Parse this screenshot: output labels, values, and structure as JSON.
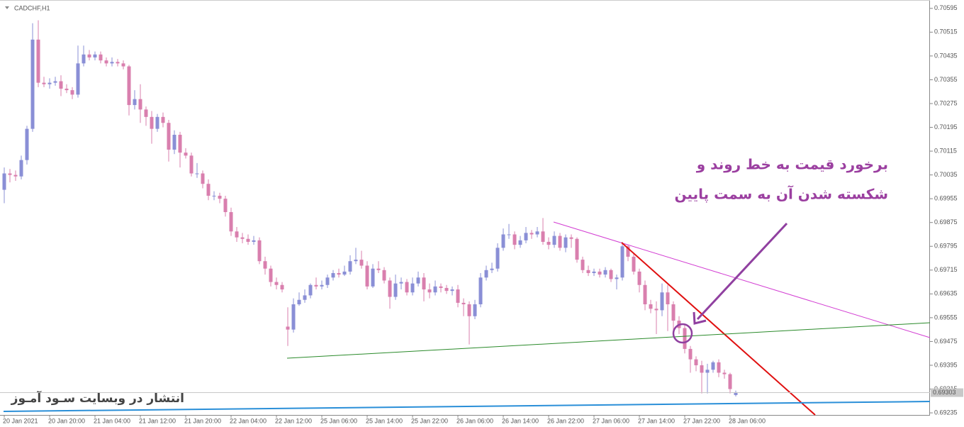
{
  "chart_data": {
    "type": "candlestick",
    "title": "CADCHF,H1",
    "categories": [
      "20 Jan 2021",
      null,
      null,
      null,
      null,
      null,
      null,
      null,
      "20 Jan 20:00",
      null,
      null,
      null,
      null,
      null,
      null,
      null,
      "21 Jan 04:00",
      null,
      null,
      null,
      null,
      null,
      null,
      null,
      "21 Jan 12:00",
      null,
      null,
      null,
      null,
      null,
      null,
      null,
      "21 Jan 20:00",
      null,
      null,
      null,
      null,
      null,
      null,
      null,
      "22 Jan 04:00",
      null,
      null,
      null,
      null,
      null,
      null,
      null,
      "22 Jan 12:00",
      null,
      null,
      null,
      null,
      null,
      null,
      null,
      "25 Jan 06:00",
      null,
      null,
      null,
      null,
      null,
      null,
      null,
      "25 Jan 14:00",
      null,
      null,
      null,
      null,
      null,
      null,
      null,
      "25 Jan 22:00",
      null,
      null,
      null,
      null,
      null,
      null,
      null,
      "26 Jan 06:00",
      null,
      null,
      null,
      null,
      null,
      null,
      null,
      "26 Jan 14:00",
      null,
      null,
      null,
      null,
      null,
      null,
      null,
      "26 Jan 22:00",
      null,
      null,
      null,
      null,
      null,
      null,
      null,
      "27 Jan 06:00",
      null,
      null,
      null,
      null,
      null,
      null,
      null,
      "27 Jan 14:00",
      null,
      null,
      null,
      null,
      null,
      null,
      null,
      "27 Jan 22:00",
      null,
      null,
      null,
      null,
      null,
      null,
      null,
      "28 Jan 06:00",
      null
    ],
    "open": [
      0.69985,
      0.7004,
      0.70035,
      0.7003,
      0.70085,
      0.7019,
      0.7049,
      0.70345,
      0.7034,
      0.70345,
      0.7035,
      0.70325,
      0.7032,
      0.70305,
      0.7041,
      0.7044,
      0.7043,
      0.7044,
      0.7042,
      0.7041,
      0.70415,
      0.7041,
      0.704,
      0.7027,
      0.7029,
      0.70255,
      0.7023,
      0.7019,
      0.7023,
      0.7021,
      0.7012,
      0.7017,
      0.7011,
      0.701,
      0.7004,
      0.7004,
      0.70005,
      0.69965,
      0.69965,
      0.69955,
      0.6991,
      0.69845,
      0.69825,
      0.6982,
      0.6981,
      0.69815,
      0.69745,
      0.6972,
      0.69675,
      0.69665,
      0.69525,
      0.69515,
      0.696,
      0.69615,
      0.6963,
      0.69665,
      0.6966,
      0.69665,
      0.6969,
      0.69705,
      0.697,
      0.6971,
      0.69745,
      0.6975,
      0.6973,
      0.6966,
      0.6972,
      0.69715,
      0.6968,
      0.69625,
      0.6967,
      0.69675,
      0.6964,
      0.6967,
      0.6969,
      0.6965,
      0.6964,
      0.6966,
      0.69655,
      0.69645,
      0.6965,
      0.69605,
      0.696,
      0.6956,
      0.696,
      0.6969,
      0.69715,
      0.6972,
      0.6979,
      0.69835,
      0.69835,
      0.698,
      0.69815,
      0.6984,
      0.69835,
      0.69845,
      0.6981,
      0.698,
      0.6983,
      0.6979,
      0.69825,
      0.6982,
      0.6975,
      0.69715,
      0.69705,
      0.6971,
      0.697,
      0.69715,
      0.69685,
      0.6969,
      0.69795,
      0.6976,
      0.6971,
      0.69665,
      0.696,
      0.69585,
      0.6958,
      0.6964,
      0.696,
      0.69545,
      0.6952,
      0.6945,
      0.69415,
      0.69395,
      0.6937,
      0.6938,
      0.69405,
      0.6937,
      0.69365,
      0.69295
    ],
    "high": [
      0.7006,
      0.70055,
      0.7005,
      0.701,
      0.702,
      0.70545,
      0.70555,
      0.70365,
      0.7036,
      0.70365,
      0.7037,
      0.7034,
      0.7033,
      0.7047,
      0.7047,
      0.70455,
      0.7045,
      0.7045,
      0.7043,
      0.7043,
      0.70425,
      0.7042,
      0.70405,
      0.7032,
      0.7034,
      0.70265,
      0.7025,
      0.7024,
      0.70245,
      0.7022,
      0.70185,
      0.7018,
      0.70125,
      0.7011,
      0.70075,
      0.7005,
      0.7002,
      0.6998,
      0.69975,
      0.69965,
      0.69925,
      0.6986,
      0.6984,
      0.69835,
      0.6983,
      0.69825,
      0.6976,
      0.6973,
      0.6969,
      0.69675,
      0.6959,
      0.6962,
      0.6964,
      0.6965,
      0.6967,
      0.6969,
      0.6968,
      0.697,
      0.69715,
      0.6972,
      0.6973,
      0.69765,
      0.6979,
      0.6978,
      0.69745,
      0.69735,
      0.69745,
      0.69725,
      0.6969,
      0.697,
      0.6969,
      0.69685,
      0.6969,
      0.6971,
      0.69705,
      0.6967,
      0.6968,
      0.6967,
      0.69665,
      0.6966,
      0.69665,
      0.6962,
      0.6961,
      0.69615,
      0.69705,
      0.6973,
      0.6974,
      0.69805,
      0.69855,
      0.6987,
      0.69845,
      0.6983,
      0.6986,
      0.6985,
      0.6986,
      0.6989,
      0.69825,
      0.69845,
      0.6984,
      0.69835,
      0.69835,
      0.69825,
      0.6976,
      0.6973,
      0.6972,
      0.6972,
      0.69725,
      0.6972,
      0.697,
      0.6981,
      0.698,
      0.6977,
      0.6972,
      0.6968,
      0.69615,
      0.6961,
      0.6967,
      0.69665,
      0.6961,
      0.6956,
      0.6953,
      0.6946,
      0.69425,
      0.6941,
      0.694,
      0.6941,
      0.69415,
      0.6938,
      0.6937,
      0.6931
    ],
    "low": [
      0.6994,
      0.7001,
      0.70015,
      0.7002,
      0.7007,
      0.7018,
      0.7033,
      0.7033,
      0.70325,
      0.70335,
      0.703,
      0.7031,
      0.7029,
      0.70295,
      0.704,
      0.7042,
      0.7042,
      0.7041,
      0.704,
      0.704,
      0.704,
      0.7039,
      0.70235,
      0.70255,
      0.7021,
      0.702,
      0.7014,
      0.7018,
      0.70195,
      0.7008,
      0.70105,
      0.7006,
      0.7009,
      0.7003,
      0.70025,
      0.6999,
      0.6995,
      0.6995,
      0.6994,
      0.69895,
      0.6983,
      0.6981,
      0.69805,
      0.698,
      0.698,
      0.69735,
      0.697,
      0.6966,
      0.6965,
      0.6964,
      0.6946,
      0.69505,
      0.69595,
      0.69605,
      0.6962,
      0.6965,
      0.6965,
      0.69655,
      0.6968,
      0.6969,
      0.69695,
      0.697,
      0.69735,
      0.6972,
      0.6965,
      0.69655,
      0.69705,
      0.6967,
      0.69585,
      0.69615,
      0.6965,
      0.6963,
      0.6963,
      0.6966,
      0.6961,
      0.6962,
      0.6963,
      0.6964,
      0.69635,
      0.6963,
      0.6959,
      0.6956,
      0.69465,
      0.6955,
      0.6959,
      0.6968,
      0.69705,
      0.6971,
      0.6978,
      0.6982,
      0.69785,
      0.6979,
      0.69805,
      0.6982,
      0.69825,
      0.698,
      0.69785,
      0.6979,
      0.6978,
      0.69775,
      0.6979,
      0.6974,
      0.69705,
      0.69695,
      0.69695,
      0.6969,
      0.6969,
      0.69675,
      0.6965,
      0.6968,
      0.69745,
      0.697,
      0.6964,
      0.6958,
      0.6957,
      0.695,
      0.6956,
      0.6951,
      0.695,
      0.695,
      0.69435,
      0.6937,
      0.69375,
      0.693,
      0.693,
      0.6937,
      0.69355,
      0.6935,
      0.693,
      0.6929
    ],
    "close": [
      0.7004,
      0.70035,
      0.7003,
      0.70085,
      0.7019,
      0.7049,
      0.70345,
      0.7034,
      0.70345,
      0.7035,
      0.70325,
      0.7032,
      0.70305,
      0.7041,
      0.7044,
      0.7043,
      0.7044,
      0.7042,
      0.7041,
      0.70415,
      0.7041,
      0.704,
      0.7027,
      0.7029,
      0.70255,
      0.7023,
      0.7019,
      0.7023,
      0.7021,
      0.7012,
      0.7017,
      0.7011,
      0.701,
      0.7004,
      0.7004,
      0.70005,
      0.69965,
      0.69965,
      0.69955,
      0.6991,
      0.69845,
      0.69825,
      0.6982,
      0.6981,
      0.69815,
      0.69745,
      0.6972,
      0.69675,
      0.69665,
      0.6965,
      0.69515,
      0.696,
      0.69615,
      0.6963,
      0.69665,
      0.6966,
      0.69665,
      0.6969,
      0.69705,
      0.697,
      0.6971,
      0.69745,
      0.6975,
      0.6973,
      0.6966,
      0.6972,
      0.69715,
      0.6968,
      0.69625,
      0.6967,
      0.69675,
      0.6964,
      0.6967,
      0.6969,
      0.6965,
      0.6964,
      0.6966,
      0.69655,
      0.69645,
      0.6965,
      0.69605,
      0.696,
      0.6956,
      0.696,
      0.6969,
      0.69715,
      0.6972,
      0.6979,
      0.69835,
      0.69835,
      0.698,
      0.69815,
      0.6984,
      0.69835,
      0.69845,
      0.6981,
      0.698,
      0.6983,
      0.6979,
      0.69825,
      0.6982,
      0.6975,
      0.69715,
      0.69705,
      0.6971,
      0.697,
      0.69715,
      0.69685,
      0.6969,
      0.69795,
      0.6976,
      0.6971,
      0.69665,
      0.696,
      0.69585,
      0.6958,
      0.6964,
      0.696,
      0.69545,
      0.6952,
      0.6945,
      0.69415,
      0.69395,
      0.6937,
      0.6938,
      0.69405,
      0.6937,
      0.69365,
      0.69315,
      0.69303
    ],
    "up_color": "#8a8fd6",
    "down_color": "#d97fae",
    "ylim": [
      0.69228,
      0.70616
    ],
    "yticks": [
      0.70595,
      0.70515,
      0.70435,
      0.70355,
      0.70275,
      0.70195,
      0.70115,
      0.70035,
      0.69955,
      0.69875,
      0.69795,
      0.69715,
      0.69635,
      0.69555,
      0.69475,
      0.69395,
      0.69315,
      0.69235
    ],
    "current_price": 0.69303,
    "annotations": [
      "برخورد قیمت به خط روند و",
      "شکسته شدن آن به سمت پایین"
    ],
    "watermark": "انتشار در وبسایت سـود آمـوز"
  }
}
